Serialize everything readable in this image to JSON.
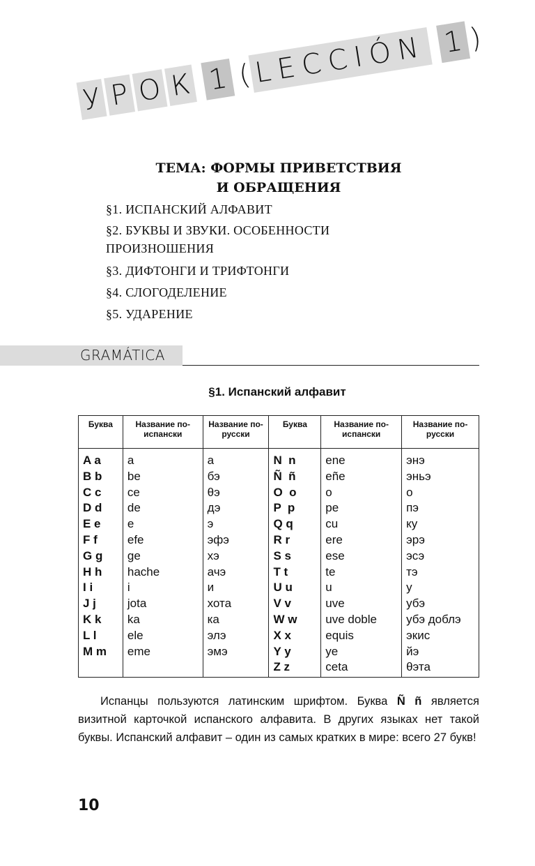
{
  "title": {
    "urok": [
      "У",
      "Р",
      "О",
      "К"
    ],
    "num1": "1",
    "open": "(",
    "leccion": "LECCIÓN",
    "num2": "1",
    "close": ")"
  },
  "theme": {
    "line1": "ТЕМА: ФОРМЫ ПРИВЕТСТВИЯ",
    "line2": "И ОБРАЩЕНИЯ"
  },
  "toc": [
    "§1. ИСПАНСКИЙ АЛФАВИТ",
    "§2. БУКВЫ И ЗВУКИ. ОСОБЕННОСТИ",
    "ПРОИЗНОШЕНИЯ",
    "§3. ДИФТОНГИ И ТРИФТОНГИ",
    "§4. СЛОГОДЕЛЕНИЕ",
    "§5. УДАРЕНИЕ"
  ],
  "section_label": "GRAMÁTICA",
  "section_title": "§1. Испанский алфавит",
  "table": {
    "headers": [
      "Буква",
      "Название по-испански",
      "Название по-русски",
      "Буква",
      "Название по-испански",
      "Название по-русски"
    ],
    "left": {
      "letters": "A a\nB b\nC c\nD d\nE e\nF f\nG g\nH h\nI i\nJ j\nK k\nL l\nM m",
      "spanish": "a\nbe\nce\nde\ne\nefe\nge\nhache\ni\njota\nka\nele\neme",
      "russian": "а\nбэ\nθэ\nдэ\nэ\nэфэ\nхэ\nачэ\nи\nхота\nка\nэлэ\nэмэ"
    },
    "right": {
      "letters": "N  n\nÑ  ñ\nO  o\nP  p\nQ q\nR r\nS s\nT t\nU u\nV v\nW w\nX x\nY y\nZ z",
      "spanish": "ene\neñe\no\npe\ncu\nere\nese\nte\nu\nuve\nuve doble\nequis\nye\nceta",
      "russian": "энэ\nэньэ\nо\nпэ\nку\nэрэ\nэсэ\nтэ\nу\nубэ\nубэ доблэ\nэкис\nйэ\nθэта"
    }
  },
  "paragraph_parts": [
    "Испанцы пользуются латинским шрифтом. Буква ",
    "Ñ ñ",
    " является визитной карточкой испанского алфавита. В других языках нет такой буквы. Испанский алфавит – один из самых кратких в мире: всего 27 букв!"
  ],
  "page_number": "10"
}
